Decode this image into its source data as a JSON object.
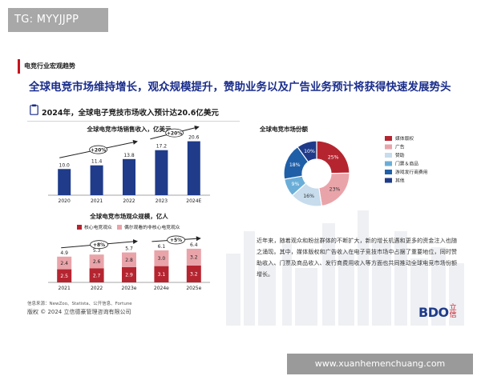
{
  "watermark_top": "TG: MYYJJPP",
  "watermark_bottom": "www.xuanhemenchuang.com",
  "slide": {
    "kicker": "电竞行业宏观趋势",
    "headline": "全球电竞市场维持增长，观众规模提升，赞助业务以及广告业务预计将获得快速发展势头",
    "subtitle": "2024年，全球电子竞技市场收入预计达20.6亿美元",
    "body": "近年来，随着观众和粉丝群体的不断扩大，新的增长机遇和更多的资金注入也随之涌现。其中，媒体版权和广告收入在电子竞技市场中占据了重要地位，同时赞助收入、门票及商品收入、发行商费用收入等方面也共同推动全球电竞市场份额增长。",
    "source": "信息来源：NewZoo、Statista、公开信息、Fortune",
    "copyright": "版权 © 2024 立信德豪管理咨询有限公司",
    "logo_text": "BDO",
    "logo_chinese": "立信"
  },
  "colors": {
    "navy": "#1f3b8a",
    "accent_red": "#c8141e"
  },
  "chart_data": [
    {
      "id": "revenue",
      "type": "bar",
      "title": "全球电竞市场销售收入，亿美元",
      "categories": [
        "2020",
        "2021",
        "2022",
        "2023",
        "2024E"
      ],
      "values": [
        10.0,
        11.4,
        13.8,
        17.2,
        20.6
      ],
      "value_labels": [
        "10.0",
        "11.4",
        "13.8",
        "17.2",
        "20.6"
      ],
      "ylim": [
        0,
        22
      ],
      "colors": [
        "#1f3b8a",
        "#1f3b8a",
        "#1f3b8a",
        "#1f3b8a",
        "#1f3b8a"
      ],
      "growth_annotations": [
        {
          "label": "+20%"
        },
        {
          "label": "+20%"
        }
      ],
      "grid": false
    },
    {
      "id": "audience",
      "type": "bar",
      "stacked": true,
      "title": "全球电竞市场观众规模，亿人",
      "categories": [
        "2021",
        "2022",
        "2023e",
        "2024e",
        "2025e"
      ],
      "series": [
        {
          "name": "核心电竞观众",
          "values": [
            2.5,
            2.7,
            2.9,
            3.1,
            3.2
          ],
          "value_labels": [
            "2.5",
            "2.7",
            "2.9",
            "3.1",
            "3.2"
          ],
          "color": "#b52530"
        },
        {
          "name": "偶尔观看的非核心电竞观众",
          "values": [
            2.4,
            2.6,
            2.8,
            3.0,
            3.2
          ],
          "value_labels": [
            "2.4",
            "2.6",
            "2.8",
            "3.0",
            "3.2"
          ],
          "color": "#e9a4aa"
        }
      ],
      "totals": [
        4.9,
        5.3,
        5.7,
        6.1,
        6.4
      ],
      "total_labels": [
        "4.9",
        "5.3",
        "5.7",
        "6.1",
        "6.4"
      ],
      "ylim": [
        0,
        7
      ],
      "legend": "top",
      "growth_annotations": [
        {
          "label": "+8%"
        },
        {
          "label": "+5%"
        }
      ],
      "grid": false
    },
    {
      "id": "share",
      "type": "pie",
      "donut": true,
      "title": "全球电竞市场份额",
      "slices": [
        {
          "name": "媒体版权",
          "value": 25,
          "label": "25%",
          "color": "#b52530"
        },
        {
          "name": "广告",
          "value": 23,
          "label": "23%",
          "color": "#e9a4aa"
        },
        {
          "name": "赞助",
          "value": 16,
          "label": "16%",
          "color": "#c7dcec"
        },
        {
          "name": "门票＆商品",
          "value": 9,
          "label": "9%",
          "color": "#6aaed8"
        },
        {
          "name": "游戏发行商费用",
          "value": 18,
          "label": "18%",
          "color": "#1f5fa8"
        },
        {
          "name": "其他",
          "value": 10,
          "label": "10%",
          "color": "#1f3b8a"
        }
      ],
      "legend": "right"
    }
  ]
}
